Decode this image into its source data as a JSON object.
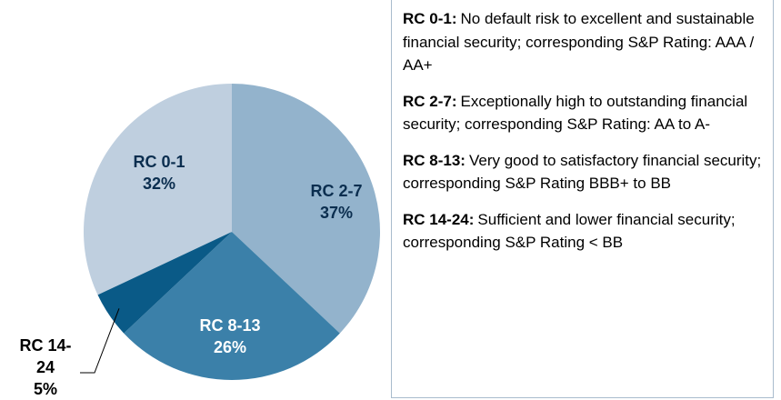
{
  "chart_data": {
    "type": "pie",
    "categories": [
      "RC 0-1",
      "RC 2-7",
      "RC 8-13",
      "RC 14-24"
    ],
    "values": [
      32,
      37,
      26,
      5
    ],
    "value_labels": [
      "32%",
      "37%",
      "26%",
      "5%"
    ],
    "colors": [
      "#bfcfdf",
      "#93b3cc",
      "#3b80a9",
      "#0a5a87"
    ],
    "notes": [
      {
        "term": "RC 0-1:",
        "text": "No default risk to excellent and sustainable financial security; corresponding S&P Rating: AAA / AA+"
      },
      {
        "term": "RC 2-7:",
        "text": "Exceptionally high to outstanding financial security; corresponding S&P Rating: AA to A-"
      },
      {
        "term": "RC 8-13:",
        "text": "Very good to satisfactory financial security; corresponding S&P Rating BBB+ to BB"
      },
      {
        "term": "RC 14-24:",
        "text": "Sufficient and lower financial security; corresponding S&P Rating < BB"
      }
    ]
  }
}
